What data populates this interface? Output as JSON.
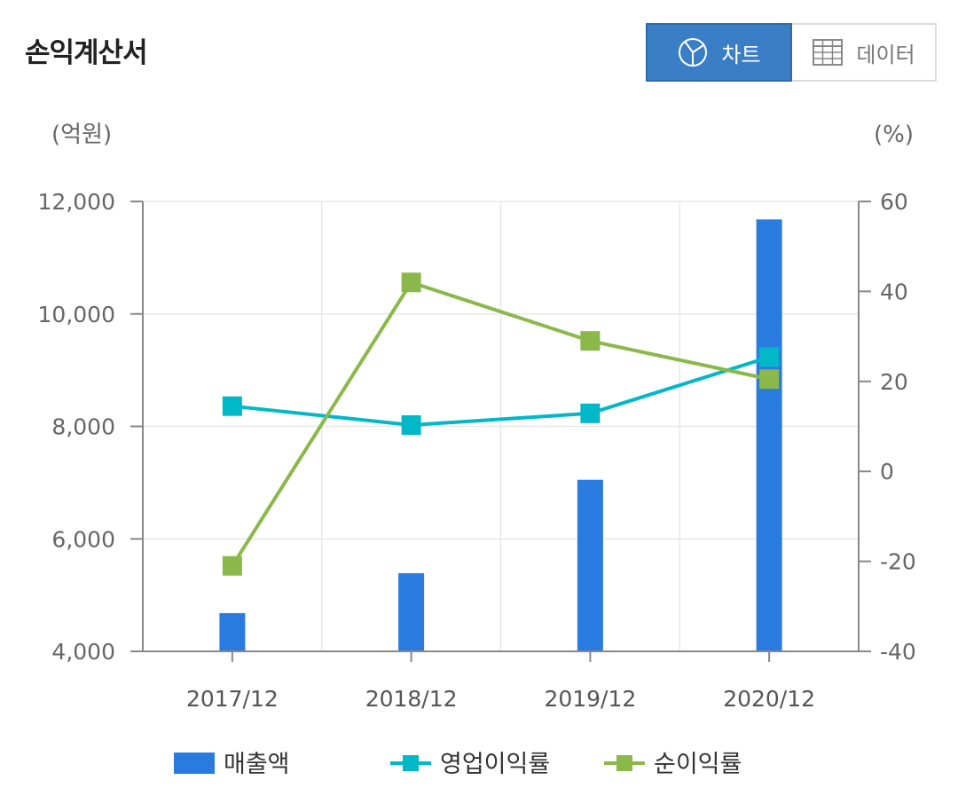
{
  "header": {
    "title": "손익계산서",
    "toggle": {
      "chart_label": "차트",
      "data_label": "데이터",
      "chart_icon": "pie-chart-icon",
      "data_icon": "table-icon",
      "active": "chart"
    }
  },
  "chart_data": {
    "type": "bar+line",
    "categories": [
      "2017/12",
      "2018/12",
      "2019/12",
      "2020/12"
    ],
    "left_axis": {
      "unit_label": "(억원)",
      "ylim": [
        4000,
        12000
      ],
      "ticks": [
        4000,
        6000,
        8000,
        10000,
        12000
      ],
      "tick_labels": [
        "4,000",
        "6,000",
        "8,000",
        "10,000",
        "12,000"
      ]
    },
    "right_axis": {
      "unit_label": "(%)",
      "ylim": [
        -40,
        60
      ],
      "ticks": [
        -40,
        -20,
        0,
        20,
        40,
        60
      ],
      "tick_labels": [
        "-40",
        "-20",
        "0",
        "20",
        "40",
        "60"
      ]
    },
    "series": [
      {
        "name": "매출액",
        "kind": "bar",
        "axis": "left",
        "color": "#2a7be0",
        "values": [
          4680,
          5390,
          7050,
          11680
        ]
      },
      {
        "name": "영업이익률",
        "kind": "line",
        "axis": "right",
        "color": "#00b8c8",
        "values": [
          14.5,
          10.3,
          12.9,
          25.4
        ]
      },
      {
        "name": "순이익률",
        "kind": "line",
        "axis": "right",
        "color": "#8ab84a",
        "values": [
          -21.0,
          42.0,
          29.0,
          20.5
        ]
      }
    ],
    "grid": true,
    "legend_position": "bottom"
  }
}
